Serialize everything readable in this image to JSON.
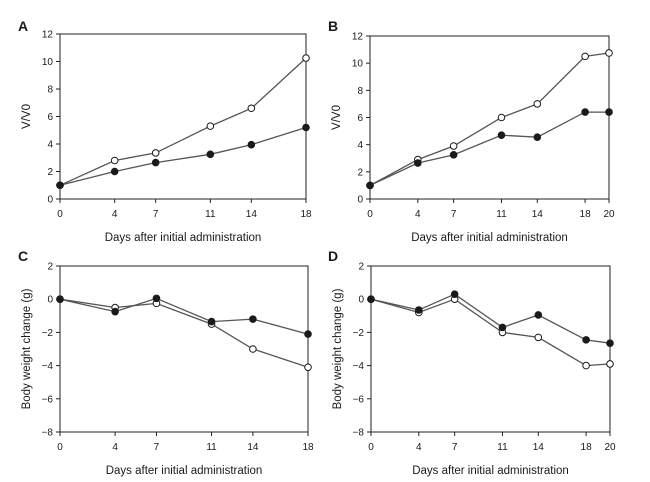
{
  "colors": {
    "filled": "#1a1a1a",
    "open": "#ffffff",
    "line": "#555555",
    "axis": "#222222"
  },
  "chart_data": [
    {
      "panel": "A",
      "type": "line",
      "x": [
        0,
        4,
        7,
        11,
        14,
        18
      ],
      "xticks": [
        "0",
        "4",
        "7",
        "11",
        "14",
        "18"
      ],
      "xlabel": "Days after initial administration",
      "ylabel": "V/V0",
      "ylim": [
        0,
        12
      ],
      "yticks": [
        "0",
        "2",
        "4",
        "6",
        "8",
        "10",
        "12"
      ],
      "series": [
        {
          "marker": "open",
          "values": [
            1.0,
            2.8,
            3.35,
            5.3,
            6.6,
            10.25
          ]
        },
        {
          "marker": "filled",
          "values": [
            1.0,
            2.0,
            2.65,
            3.25,
            3.95,
            5.2
          ]
        }
      ]
    },
    {
      "panel": "B",
      "type": "line",
      "x": [
        0,
        4,
        7,
        11,
        14,
        18,
        20
      ],
      "xticks": [
        "0",
        "4",
        "7",
        "11",
        "14",
        "18",
        "20"
      ],
      "xlabel": "Days after initial administration",
      "ylabel": "V/V0",
      "ylim": [
        0,
        12
      ],
      "yticks": [
        "0",
        "2",
        "4",
        "6",
        "8",
        "10",
        "12"
      ],
      "series": [
        {
          "marker": "open",
          "values": [
            1.0,
            2.9,
            3.9,
            6.0,
            7.0,
            10.5,
            10.75
          ]
        },
        {
          "marker": "filled",
          "values": [
            1.0,
            2.65,
            3.25,
            4.7,
            4.55,
            6.4,
            6.4
          ]
        }
      ]
    },
    {
      "panel": "C",
      "type": "line",
      "x": [
        0,
        4,
        7,
        11,
        14,
        18
      ],
      "xticks": [
        "0",
        "4",
        "7",
        "11",
        "14",
        "18"
      ],
      "xlabel": "Days after initial administration",
      "ylabel": "Body weight change (g)",
      "ylim": [
        -8,
        2
      ],
      "yticks": [
        "−8",
        "−6",
        "−4",
        "−2",
        "0",
        "2"
      ],
      "series": [
        {
          "marker": "open",
          "values": [
            0.0,
            -0.5,
            -0.25,
            -1.5,
            -3.0,
            -4.1
          ]
        },
        {
          "marker": "filled",
          "values": [
            0.0,
            -0.75,
            0.05,
            -1.35,
            -1.2,
            -2.1
          ]
        }
      ]
    },
    {
      "panel": "D",
      "type": "line",
      "x": [
        0,
        4,
        7,
        11,
        14,
        18,
        20
      ],
      "xticks": [
        "0",
        "4",
        "7",
        "11",
        "14",
        "18",
        "20"
      ],
      "xlabel": "Days after initial administration",
      "ylabel": "Body weight change (g)",
      "ylim": [
        -8,
        2
      ],
      "yticks": [
        "−8",
        "−6",
        "−4",
        "−2",
        "0",
        "2"
      ],
      "series": [
        {
          "marker": "open",
          "values": [
            0.0,
            -0.8,
            0.0,
            -2.0,
            -2.3,
            -4.0,
            -3.9
          ]
        },
        {
          "marker": "filled",
          "values": [
            0.0,
            -0.65,
            0.3,
            -1.7,
            -0.95,
            -2.45,
            -2.65
          ]
        }
      ]
    }
  ]
}
